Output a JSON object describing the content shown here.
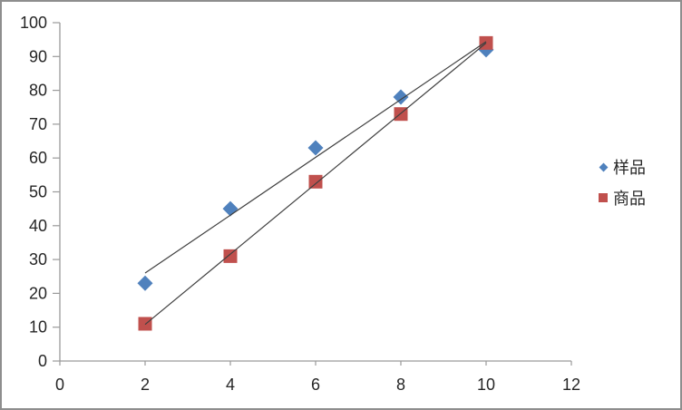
{
  "chart_data": {
    "type": "scatter",
    "title": "",
    "x": [
      2,
      4,
      6,
      8,
      10
    ],
    "series": [
      {
        "name": "样品",
        "marker": "diamond",
        "color": "#4F81BD",
        "values": [
          23,
          45,
          63,
          78,
          92
        ]
      },
      {
        "name": "商品",
        "marker": "square",
        "color": "#C0504D",
        "values": [
          11,
          31,
          53,
          73,
          94
        ]
      }
    ],
    "trendlines": [
      {
        "series": "样品",
        "x1": 2,
        "y1": 26.0,
        "x2": 10,
        "y2": 94.4
      },
      {
        "series": "商品",
        "x1": 2,
        "y1": 10.8,
        "x2": 10,
        "y2": 94.0
      }
    ],
    "xlabel": "",
    "ylabel": "",
    "xlim": [
      0,
      12
    ],
    "ylim": [
      0,
      100
    ],
    "x_ticks": [
      0,
      2,
      4,
      6,
      8,
      10,
      12
    ],
    "y_ticks": [
      0,
      10,
      20,
      30,
      40,
      50,
      60,
      70,
      80,
      90,
      100
    ],
    "grid": false,
    "legend_position": "right",
    "colors": {
      "axis": "#9a9a9a",
      "labels": "#262626",
      "trendline": "#404040",
      "frame_border": "#8e8e8e",
      "background": "#ffffff"
    }
  }
}
